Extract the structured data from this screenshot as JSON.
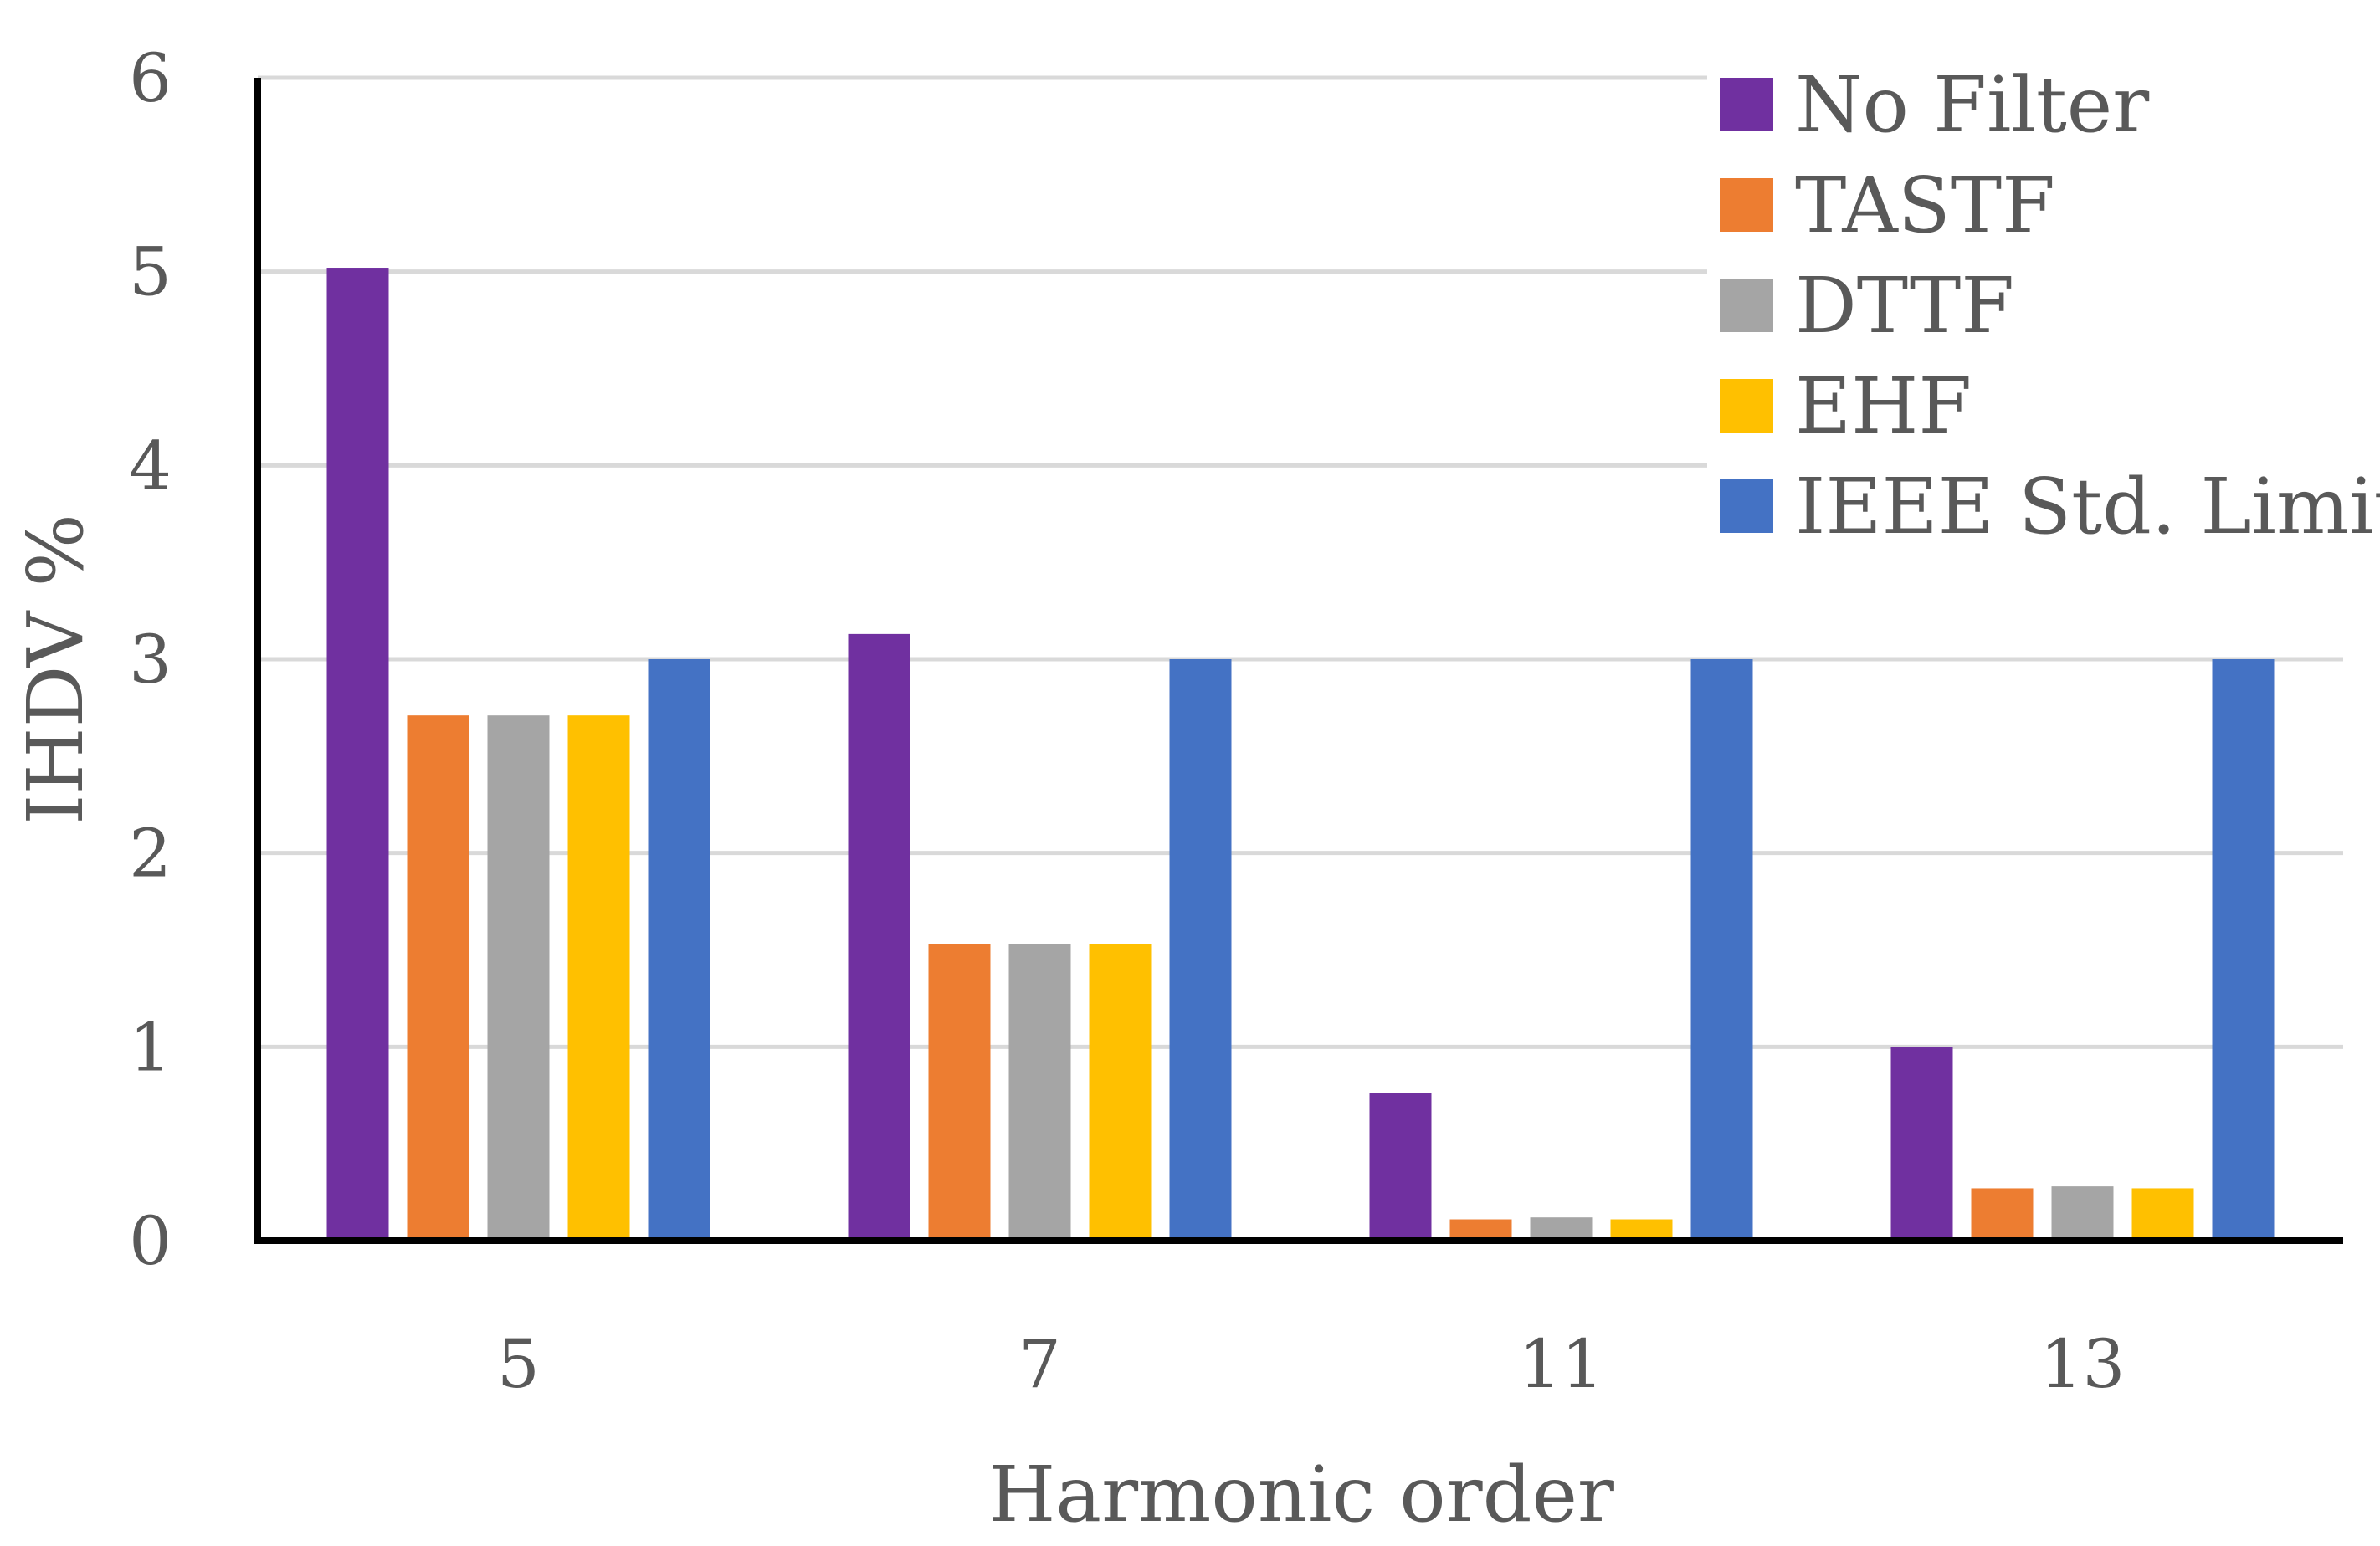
{
  "chart_data": {
    "type": "bar",
    "title": "",
    "xlabel": "Harmonic order",
    "ylabel": "IHDV  %",
    "categories": [
      "5",
      "7",
      "11",
      "13"
    ],
    "ylim": [
      0,
      6
    ],
    "yticks": [
      0,
      1,
      2,
      3,
      4,
      5,
      6
    ],
    "grid": true,
    "legend_position": "top-right",
    "series": [
      {
        "name": "No Filter",
        "color": "#7030A0",
        "values": [
          5.02,
          3.13,
          0.76,
          1.0
        ]
      },
      {
        "name": "TASTF",
        "color": "#ED7D31",
        "values": [
          2.71,
          1.53,
          0.11,
          0.27
        ]
      },
      {
        "name": "DTTF",
        "color": "#A5A5A5",
        "values": [
          2.71,
          1.53,
          0.12,
          0.28
        ]
      },
      {
        "name": "EHF",
        "color": "#FFC000",
        "values": [
          2.71,
          1.53,
          0.11,
          0.27
        ]
      },
      {
        "name": "IEEE Std. Limit",
        "color": "#4472C4",
        "values": [
          3.0,
          3.0,
          3.0,
          3.0
        ]
      }
    ]
  }
}
